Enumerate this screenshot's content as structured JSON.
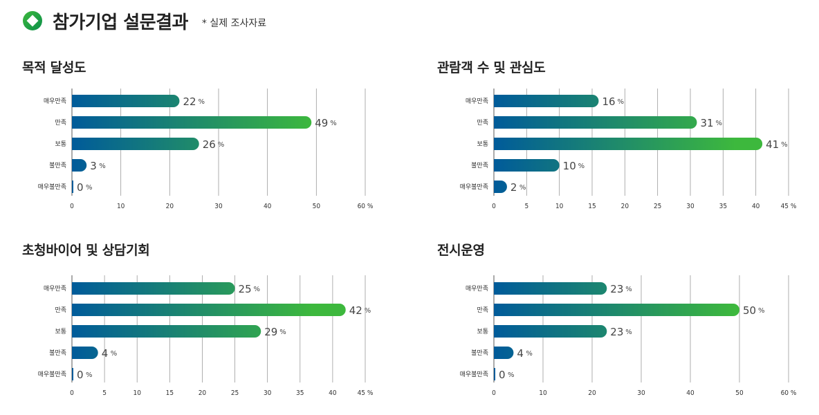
{
  "page": {
    "title": "참가기업 설문결과",
    "note": "* 실제 조사자료",
    "colors": {
      "gradient_start": "#005b9a",
      "gradient_end": "#3db83d",
      "grid": "#9a9a9a"
    }
  },
  "chart_data": [
    {
      "type": "bar",
      "title": "목적 달성도",
      "categories": [
        "매우만족",
        "만족",
        "보통",
        "불만족",
        "매우불만족"
      ],
      "values": [
        22,
        49,
        26,
        3,
        0
      ],
      "unit": "%",
      "xlim": [
        0,
        60
      ],
      "ticks": [
        0,
        10,
        20,
        30,
        40,
        50,
        60
      ],
      "grid": true
    },
    {
      "type": "bar",
      "title": "관람객 수 및 관심도",
      "categories": [
        "매우만족",
        "만족",
        "보통",
        "불만족",
        "매우불만족"
      ],
      "values": [
        16,
        31,
        41,
        10,
        2
      ],
      "unit": "%",
      "xlim": [
        0,
        45
      ],
      "ticks": [
        0,
        5,
        10,
        15,
        20,
        25,
        30,
        35,
        40,
        45
      ],
      "grid": true
    },
    {
      "type": "bar",
      "title": "초청바이어 및 상담기회",
      "categories": [
        "매우만족",
        "만족",
        "보통",
        "불만족",
        "매우불만족"
      ],
      "values": [
        25,
        42,
        29,
        4,
        0
      ],
      "unit": "%",
      "xlim": [
        0,
        45
      ],
      "ticks": [
        0,
        5,
        10,
        15,
        20,
        25,
        30,
        35,
        40,
        45
      ],
      "grid": true
    },
    {
      "type": "bar",
      "title": "전시운영",
      "categories": [
        "매우만족",
        "만족",
        "보통",
        "불만족",
        "매우불만족"
      ],
      "values": [
        23,
        50,
        23,
        4,
        0
      ],
      "unit": "%",
      "xlim": [
        0,
        60
      ],
      "ticks": [
        0,
        10,
        20,
        30,
        40,
        50,
        60
      ],
      "grid": true
    }
  ]
}
